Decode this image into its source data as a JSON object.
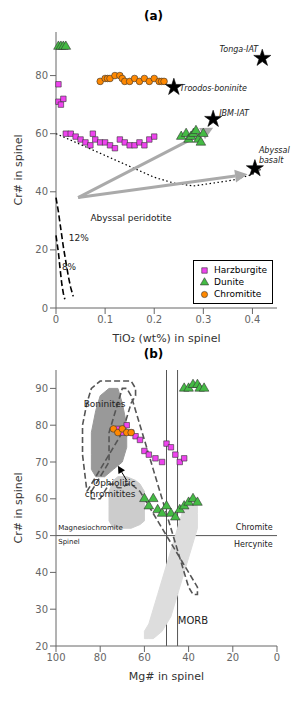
{
  "chart_data": [
    {
      "type": "scatter",
      "title": "(a)",
      "xlabel": "TiO₂ (wt%) in spinel",
      "ylabel": "Cr# in spinel",
      "xlim": [
        0,
        0.45
      ],
      "ylim": [
        0,
        95
      ],
      "xticks": [
        0,
        0.1,
        0.2,
        0.3,
        0.4
      ],
      "yticks": [
        0,
        20,
        40,
        60,
        80
      ],
      "legend": "lower right",
      "series": [
        {
          "type": "line",
          "line_style": "dotted",
          "color": "#000000",
          "x": [
            0.0,
            0.04,
            0.08,
            0.12,
            0.16,
            0.2,
            0.24,
            0.28,
            0.32,
            0.36,
            0.4,
            0.42
          ],
          "values": [
            60,
            57,
            54,
            51,
            48,
            45,
            43,
            42,
            43,
            44,
            46,
            48
          ]
        },
        {
          "type": "line",
          "line_style": "dashed",
          "color": "#000000",
          "x": [
            0.0,
            0.005,
            0.01,
            0.015,
            0.02,
            0.025,
            0.03,
            0.035
          ],
          "values": [
            38,
            33,
            27,
            21,
            16,
            11,
            7,
            4
          ]
        },
        {
          "type": "line",
          "line_style": "dashed",
          "color": "#000000",
          "x": [
            0.0,
            0.005,
            0.008,
            0.01,
            0.012,
            0.015,
            0.018
          ],
          "values": [
            25,
            19,
            14,
            11,
            8,
            5,
            3
          ]
        },
        {
          "name": "Harzburgite",
          "type": "scatter",
          "marker": "square",
          "color": "#EE44EE",
          "x": [
            0.005,
            0.01,
            0.02,
            0.03,
            0.04,
            0.05,
            0.06,
            0.07,
            0.075,
            0.08,
            0.09,
            0.1,
            0.11,
            0.12,
            0.13,
            0.14,
            0.15,
            0.16,
            0.17,
            0.18,
            0.19,
            0.2,
            0.005,
            0.015
          ],
          "values": [
            71,
            70,
            60,
            60,
            59,
            58,
            57,
            56,
            60,
            58,
            57,
            57,
            56,
            55,
            58,
            57,
            56,
            56,
            57,
            56,
            58,
            59,
            77,
            72
          ]
        },
        {
          "name": "Dunite",
          "type": "scatter",
          "marker": "triangle",
          "color": "#44BB44",
          "x": [
            0.005,
            0.01,
            0.015,
            0.02,
            0.255,
            0.265,
            0.27,
            0.275,
            0.28,
            0.285,
            0.29,
            0.295,
            0.3
          ],
          "values": [
            90,
            90,
            90,
            90,
            59,
            60,
            58,
            59,
            60,
            61,
            58,
            57,
            60
          ]
        },
        {
          "name": "Chromitite",
          "type": "scatter",
          "marker": "circle",
          "color": "#FF8800",
          "x": [
            0.09,
            0.1,
            0.105,
            0.11,
            0.12,
            0.13,
            0.135,
            0.14,
            0.15,
            0.16,
            0.17,
            0.18,
            0.19,
            0.2,
            0.21,
            0.215,
            0.22
          ],
          "values": [
            78,
            79,
            79,
            79,
            80,
            80,
            79,
            78,
            78,
            79,
            78,
            79,
            78,
            79,
            78,
            78,
            78
          ]
        },
        {
          "type": "scatter",
          "marker": "star",
          "color": "#000000",
          "x": [
            0.42,
            0.24,
            0.32,
            0.405
          ],
          "values": [
            86,
            76,
            65,
            48
          ],
          "point_labels": [
            "Tonga-IAT",
            "Troodos-boninite",
            "IBM-IAT",
            "Abyssal\nbasalt"
          ]
        }
      ],
      "arrows": [
        {
          "from": [
            0.045,
            38
          ],
          "to": [
            0.32,
            62
          ],
          "color": "#AAAAAA"
        },
        {
          "from": [
            0.045,
            38
          ],
          "to": [
            0.39,
            46
          ],
          "color": "#AAAAAA"
        }
      ],
      "annotations": [
        {
          "text": "Abyssal peridotite",
          "x": 0.07,
          "y": 30
        },
        {
          "text": "12%",
          "x": 0.026,
          "y": 23
        },
        {
          "text": "8%",
          "x": 0.012,
          "y": 13
        }
      ]
    },
    {
      "type": "scatter",
      "title": "(b)",
      "xlabel": "Mg# in spinel",
      "ylabel": "Cr# in spinel",
      "xlim": [
        100,
        0
      ],
      "ylim": [
        20,
        95
      ],
      "xticks": [
        0,
        20,
        40,
        60,
        80,
        100
      ],
      "yticks": [
        20,
        30,
        40,
        50,
        60,
        70,
        80,
        90
      ],
      "series": [
        {
          "type": "polygon",
          "color": "#DDDDDD",
          "x": [
            60,
            58,
            56,
            54,
            52,
            50,
            48,
            46,
            44,
            42,
            40,
            38,
            36,
            36,
            36,
            38,
            40,
            42,
            44,
            46,
            48,
            50,
            52,
            54,
            56,
            58,
            60,
            60
          ],
          "values": [
            22,
            22,
            22,
            23,
            24,
            26,
            28,
            32,
            36,
            40,
            44,
            48,
            52,
            56,
            58,
            60,
            60,
            58,
            54,
            50,
            46,
            42,
            38,
            34,
            30,
            26,
            24,
            22
          ]
        },
        {
          "type": "polygon",
          "color": "#CCCCCC",
          "x": [
            76,
            74,
            70,
            66,
            62,
            60,
            60,
            60,
            62,
            64,
            68,
            72,
            74,
            76,
            76,
            76
          ],
          "values": [
            54,
            52,
            52,
            52,
            53,
            54,
            58,
            62,
            64,
            65,
            66,
            66,
            65,
            62,
            58,
            54
          ]
        },
        {
          "type": "polygon",
          "color": "#999999",
          "x": [
            84,
            82,
            78,
            74,
            70,
            68,
            68,
            70,
            72,
            76,
            80,
            82,
            84,
            84,
            84
          ],
          "values": [
            68,
            66,
            66,
            68,
            70,
            74,
            80,
            86,
            90,
            90,
            88,
            84,
            78,
            72,
            68
          ]
        },
        {
          "type": "line",
          "line_style": "dashed",
          "color": "#555555",
          "x": [
            86,
            84,
            82,
            80,
            78,
            76,
            74,
            72,
            70,
            68,
            66,
            64,
            64,
            66,
            68,
            72,
            76,
            80,
            84,
            86,
            88,
            88,
            86
          ],
          "values": [
            62,
            64,
            66,
            68,
            70,
            72,
            74,
            76,
            78,
            82,
            86,
            88,
            90,
            92,
            92,
            92,
            92,
            92,
            90,
            86,
            80,
            72,
            62
          ]
        },
        {
          "type": "line",
          "line_style": "dashed",
          "color": "#555555",
          "x": [
            84,
            82,
            80,
            78,
            76,
            76,
            76,
            74,
            72,
            70,
            68,
            66,
            64,
            62,
            60,
            58,
            56,
            54,
            52,
            50,
            48,
            46,
            44,
            42,
            40,
            38,
            36,
            36,
            38,
            40,
            42,
            44,
            46,
            48,
            50,
            52,
            54,
            56,
            58,
            60,
            62,
            64,
            66,
            68,
            70,
            72,
            74,
            76,
            78,
            80,
            82,
            84,
            84
          ],
          "values": [
            62,
            64,
            66,
            68,
            70,
            74,
            78,
            82,
            86,
            90,
            90,
            88,
            84,
            80,
            76,
            72,
            68,
            64,
            60,
            56,
            52,
            48,
            44,
            40,
            36,
            34,
            34,
            36,
            38,
            40,
            42,
            44,
            46,
            48,
            50,
            52,
            54,
            56,
            58,
            60,
            62,
            63,
            64,
            64,
            63,
            63,
            64,
            64,
            62,
            60,
            60,
            60,
            62
          ]
        },
        {
          "type": "scatter",
          "marker": "square",
          "color": "#EE44EE",
          "x": [
            72,
            70,
            68,
            66,
            64,
            62,
            60,
            58,
            55,
            52,
            50,
            48,
            46,
            44,
            42
          ],
          "values": [
            79,
            78,
            80,
            78,
            77,
            76,
            73,
            72,
            71,
            70,
            75,
            74,
            72,
            70,
            71
          ]
        },
        {
          "type": "scatter",
          "marker": "triangle",
          "color": "#44BB44",
          "x": [
            60,
            58,
            56,
            54,
            52,
            50,
            48,
            46,
            44,
            42,
            40,
            38,
            36
          ],
          "values": [
            60,
            58,
            60,
            57,
            56,
            58,
            56,
            55,
            57,
            58,
            59,
            60,
            59
          ]
        },
        {
          "type": "scatter",
          "marker": "triangle",
          "color": "#44BB44",
          "x": [
            42,
            40,
            38,
            36,
            35,
            33
          ],
          "values": [
            90,
            90,
            91,
            91,
            90,
            90
          ]
        },
        {
          "type": "scatter",
          "marker": "circle",
          "color": "#FF8800",
          "x": [
            74,
            72,
            70,
            68,
            66
          ],
          "values": [
            79,
            78,
            79,
            78,
            78
          ]
        }
      ],
      "reference_lines": {
        "y": [
          50
        ],
        "x": [
          50,
          45
        ],
        "color": "#555555"
      },
      "arrows": [
        {
          "from": [
            68,
            65
          ],
          "to": [
            72,
            69
          ],
          "color": "#000000"
        }
      ],
      "annotations": [
        {
          "text": "Boninites",
          "x": 78,
          "y": 85
        },
        {
          "text": "Ophiolitic\nchromitites",
          "x": 64,
          "y": 65
        },
        {
          "text": "MORB",
          "x": 38,
          "y": 26
        },
        {
          "text": "Magnesiochromite",
          "x": 99,
          "y": 51.5
        },
        {
          "text": "Spinel",
          "x": 99,
          "y": 49.0
        },
        {
          "text": "Chromite",
          "x": 2,
          "y": 51.5
        },
        {
          "text": "Hercynite",
          "x": 2,
          "y": 48.5
        }
      ]
    }
  ]
}
